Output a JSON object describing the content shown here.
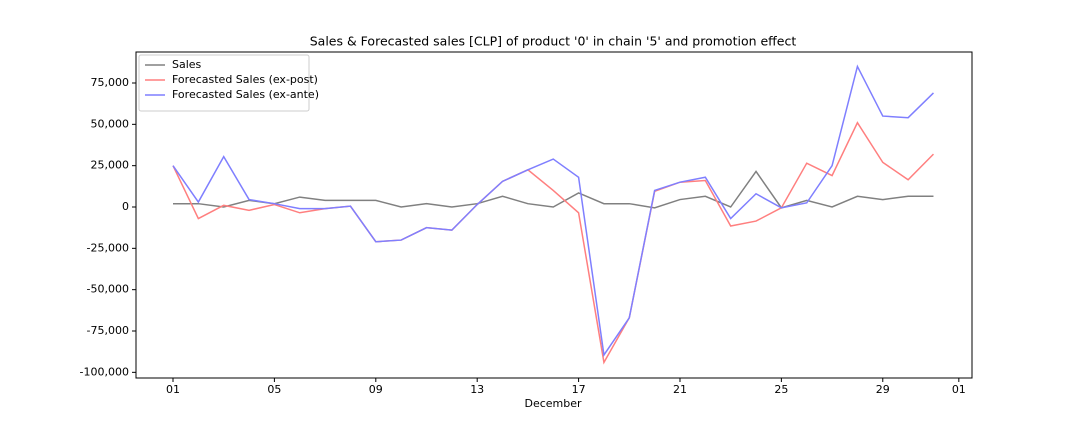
{
  "chart_data": {
    "type": "line",
    "title": "Sales & Forecasted sales [CLP] of product '0' in chain '5' and promotion effect",
    "xlabel": "December",
    "x": [
      1,
      2,
      3,
      4,
      5,
      6,
      7,
      8,
      9,
      10,
      11,
      12,
      13,
      14,
      15,
      16,
      17,
      18,
      19,
      20,
      21,
      22,
      23,
      24,
      25,
      26,
      27,
      28,
      29,
      30,
      31
    ],
    "series": [
      {
        "name": "Sales",
        "color": "#808080",
        "values": [
          2000,
          2000,
          0,
          4000,
          2000,
          6000,
          4000,
          4000,
          4000,
          0,
          2000,
          0,
          2000,
          6500,
          2000,
          0,
          8500,
          2000,
          2000,
          -500,
          4500,
          6500,
          0,
          21500,
          -500,
          4000,
          0,
          6500,
          4500,
          6500,
          6500
        ]
      },
      {
        "name": "Forecasted Sales (ex-post)",
        "color": "#ff7f7f",
        "values": [
          25000,
          -7000,
          1000,
          -2000,
          1500,
          -3500,
          -1000,
          500,
          -21000,
          -20000,
          -12500,
          -14000,
          1500,
          15500,
          22500,
          10000,
          -3500,
          -94000,
          -67000,
          9500,
          15000,
          16000,
          -11500,
          -8500,
          -500,
          26500,
          19000,
          51000,
          27000,
          16500,
          32000
        ]
      },
      {
        "name": "Forecasted Sales (ex-ante)",
        "color": "#7f7fff",
        "values": [
          25000,
          3000,
          30500,
          4500,
          2000,
          -1000,
          -1000,
          500,
          -21000,
          -20000,
          -12500,
          -14000,
          1500,
          15500,
          22500,
          29000,
          18000,
          -89500,
          -67000,
          10000,
          15000,
          18000,
          -7000,
          8000,
          -500,
          2500,
          25000,
          85000,
          55000,
          54000,
          69000
        ]
      }
    ],
    "xlim": [
      -0.46,
      32.52
    ],
    "xticks": [
      {
        "value": 1,
        "label": "01"
      },
      {
        "value": 5,
        "label": "05"
      },
      {
        "value": 9,
        "label": "09"
      },
      13,
      17,
      21,
      25,
      29,
      {
        "value": 32,
        "label": "01"
      }
    ],
    "ylim": [
      -103427,
      93750
    ],
    "yticks": [
      {
        "value": -100000,
        "label": "-100,000"
      },
      {
        "value": -75000,
        "label": "-75,000"
      },
      {
        "value": -50000,
        "label": "-50,000"
      },
      {
        "value": -25000,
        "label": "-25,000"
      },
      0,
      {
        "value": 25000,
        "label": "25,000"
      },
      {
        "value": 50000,
        "label": "50,000"
      },
      {
        "value": 75000,
        "label": "75,000"
      }
    ],
    "legend": "upper left",
    "grid": false
  }
}
